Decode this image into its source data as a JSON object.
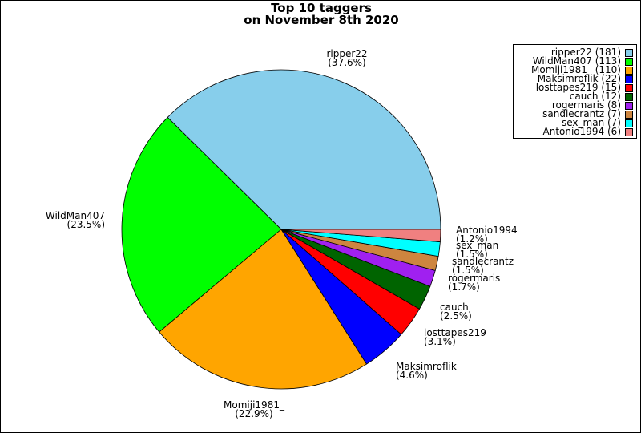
{
  "chart_data": {
    "type": "pie",
    "title": [
      "Top 10 taggers",
      "on November 8th 2020"
    ],
    "slices": [
      {
        "name": "ripper22",
        "value": 181,
        "percent": "(37.6%)",
        "legend": "ripper22 (181)",
        "label": "ripper22",
        "color": "#87ceeb"
      },
      {
        "name": "WildMan407",
        "value": 113,
        "percent": "(23.5%)",
        "legend": "WildMan407 (113)",
        "label": "WildMan407",
        "color": "#00ff00"
      },
      {
        "name": "Momiji1981_",
        "value": 110,
        "percent": "(22.9%)",
        "legend": "Momiji1981_ (110)",
        "label": "Momiji1981_",
        "color": "#ffa500"
      },
      {
        "name": "Maksimroflik",
        "value": 22,
        "percent": "(4.6%)",
        "legend": "Maksimroflik (22)",
        "label": "Maksimroflik",
        "color": "#0000ff"
      },
      {
        "name": "losttapes219",
        "value": 15,
        "percent": "(3.1%)",
        "legend": "losttapes219 (15)",
        "label": "losttapes219",
        "color": "#ff0000"
      },
      {
        "name": "cauch",
        "value": 12,
        "percent": "(2.5%)",
        "legend": "cauch (12)",
        "label": "cauch",
        "color": "#006400"
      },
      {
        "name": "rogermaris",
        "value": 8,
        "percent": "(1.7%)",
        "legend": "rogermaris (8)",
        "label": "rogermaris",
        "color": "#a020f0"
      },
      {
        "name": "sandlecrantz",
        "value": 7,
        "percent": "(1.5%)",
        "legend": "sandlecrantz (7)",
        "label": "sandlecrantz",
        "color": "#cd853f"
      },
      {
        "name": "sex_man",
        "value": 7,
        "percent": "(1.5%)",
        "legend": "sex_man (7)",
        "label": "sex_man",
        "color": "#00ffff"
      },
      {
        "name": "Antonio1994",
        "value": 6,
        "percent": "(1.2%)",
        "legend": "Antonio1994 (6)",
        "label": "Antonio1994",
        "color": "#f08080"
      }
    ],
    "legend_position": "top-right"
  }
}
